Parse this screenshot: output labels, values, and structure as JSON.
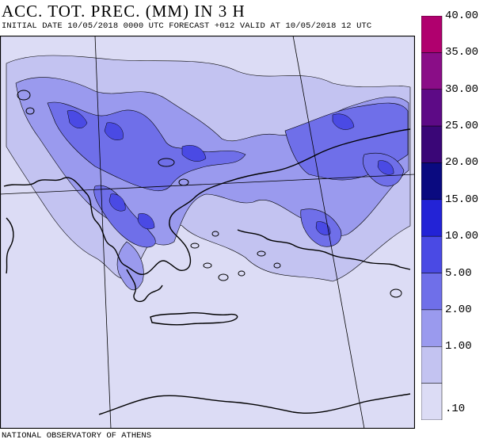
{
  "header": {
    "title": "ACC. TOT. PREC. (MM) IN 3 H",
    "subtitle": "INITIAL DATE 10/05/2018  0000 UTC FORECAST +012 VALID AT  10/05/2018  12 UTC"
  },
  "footer": {
    "credit": "NATIONAL OBSERVATORY OF ATHENS"
  },
  "legend": {
    "levels": [
      {
        "label": "40.00",
        "color": "#b0006e"
      },
      {
        "label": "35.00",
        "color": "#8a0d87"
      },
      {
        "label": "30.00",
        "color": "#5d0a86"
      },
      {
        "label": "25.00",
        "color": "#3a0677"
      },
      {
        "label": "20.00",
        "color": "#0a0a80"
      },
      {
        "label": "15.00",
        "color": "#2323d6"
      },
      {
        "label": "10.00",
        "color": "#4a4ae4"
      },
      {
        "label": "5.00",
        "color": "#6f6fe9"
      },
      {
        "label": "2.00",
        "color": "#9a9aee"
      },
      {
        "label": "1.00",
        "color": "#c3c3f1"
      },
      {
        "label": ".10",
        "color": "#dcdcf5"
      }
    ]
  },
  "map": {
    "background_color": "#dcdcf5",
    "coast_color": "#000000"
  }
}
